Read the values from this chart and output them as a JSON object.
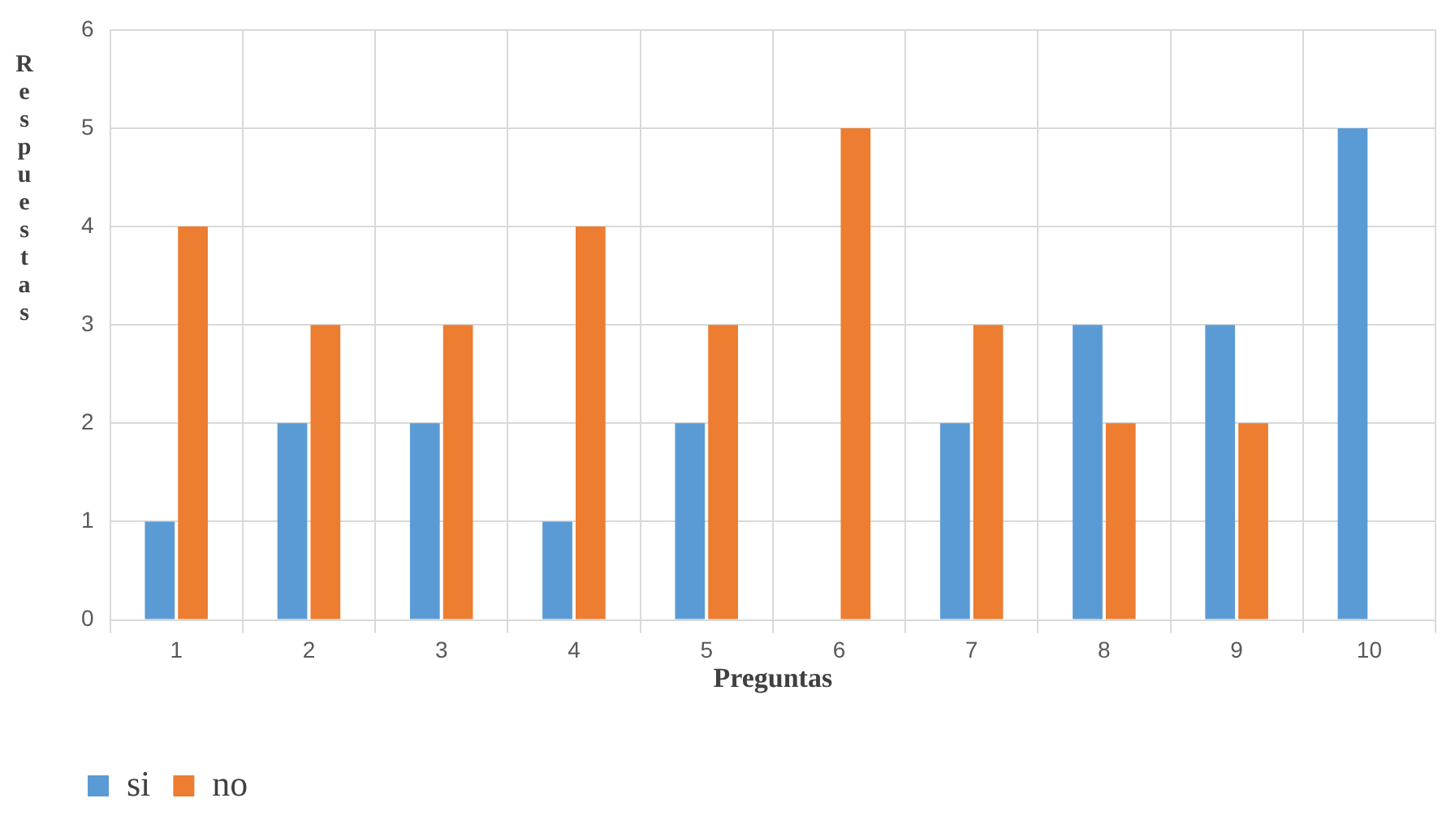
{
  "chart_data": {
    "type": "bar",
    "xlabel": "Preguntas",
    "ylabel": "Respuestas",
    "categories": [
      "1",
      "2",
      "3",
      "4",
      "5",
      "6",
      "7",
      "8",
      "9",
      "10"
    ],
    "series": [
      {
        "name": "si",
        "color": "#5b9bd5",
        "values": [
          1,
          2,
          2,
          1,
          2,
          0,
          2,
          3,
          3,
          5
        ]
      },
      {
        "name": "no",
        "color": "#ed7d31",
        "values": [
          4,
          3,
          3,
          4,
          3,
          5,
          3,
          2,
          2,
          0
        ]
      }
    ],
    "ylim": [
      0,
      6
    ],
    "yticks": [
      0,
      1,
      2,
      3,
      4,
      5,
      6
    ],
    "grid": true,
    "legend": "bottom left"
  }
}
